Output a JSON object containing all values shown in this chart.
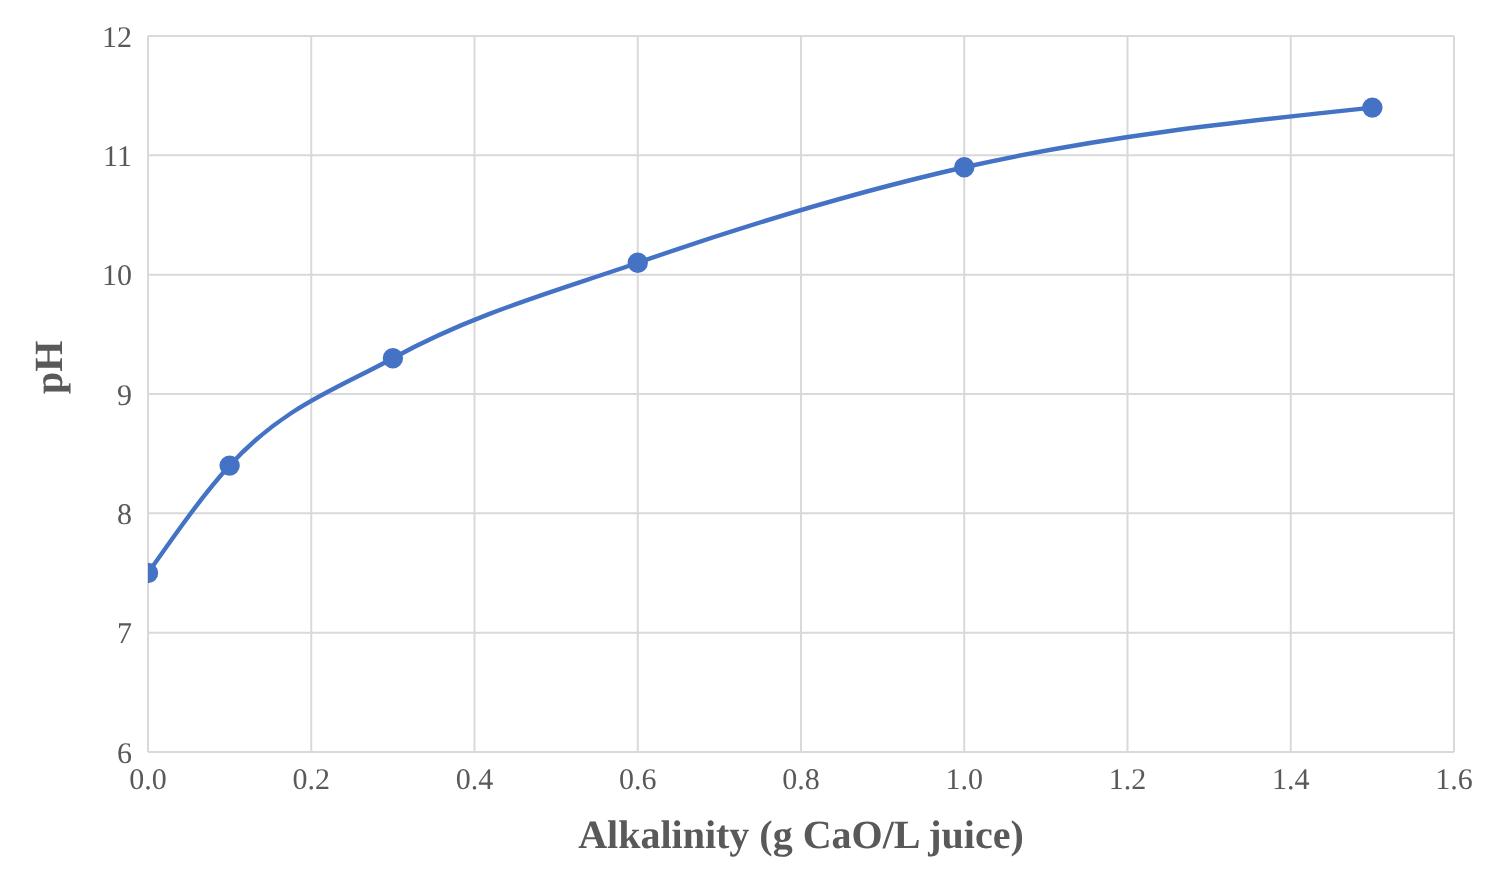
{
  "chart_data": {
    "type": "line",
    "xlabel": "Alkalinity (g CaO/L juice)",
    "ylabel": "pH",
    "x": [
      0,
      0.1,
      0.3,
      0.6,
      1.0,
      1.5
    ],
    "series": [
      {
        "color": "#4472c4",
        "values": [
          7.5,
          8.4,
          9.3,
          10.1,
          10.9,
          11.4
        ]
      }
    ],
    "xlim": [
      0,
      1.6
    ],
    "xticks": [
      {
        "value": 0,
        "label": "0.0"
      },
      0.2,
      0.4,
      0.6,
      0.8,
      {
        "value": 1,
        "label": "1.0"
      },
      1.2,
      1.4,
      1.6
    ],
    "ylim": [
      6,
      12
    ],
    "yticks": [
      6,
      7,
      8,
      9,
      10,
      11,
      12
    ],
    "grid": true,
    "marker": "circle",
    "line_style": "solid",
    "legend": false
  }
}
